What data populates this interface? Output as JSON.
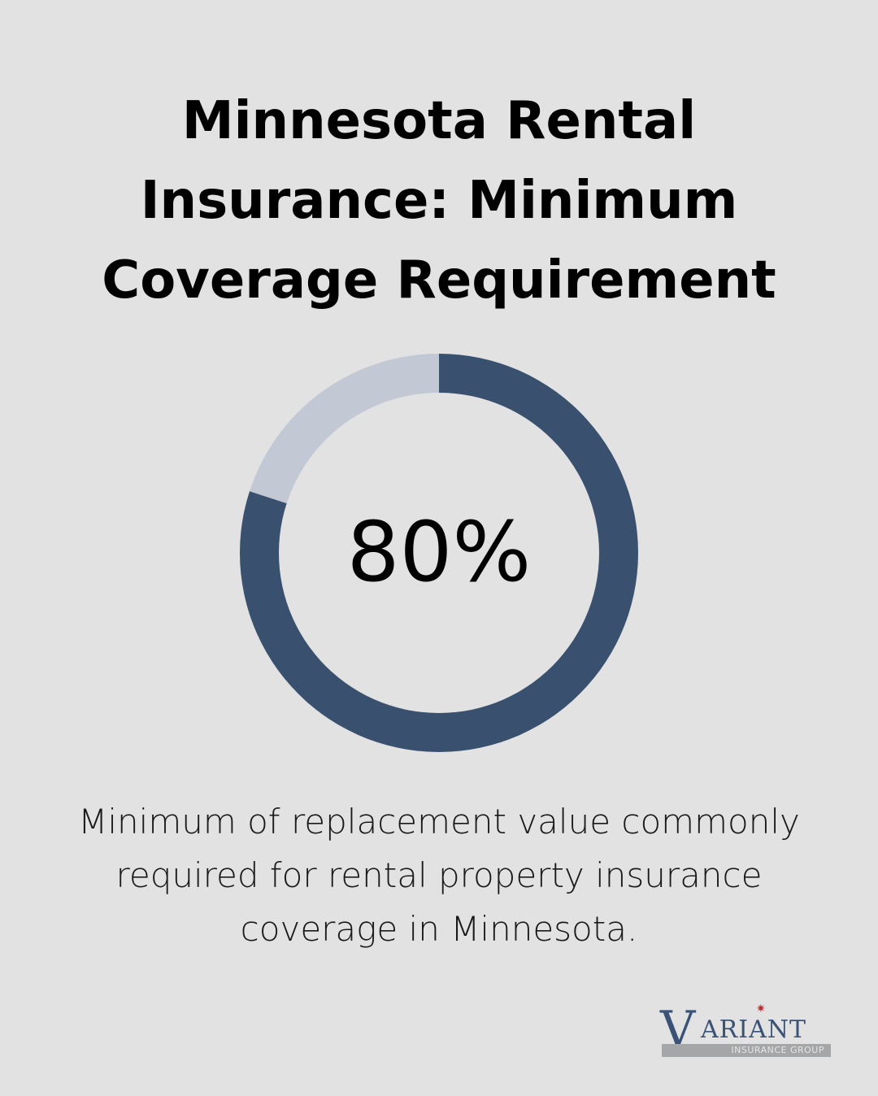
{
  "title_lines": [
    "Minnesota Rental",
    "Insurance: Minimum",
    "Coverage Requirement"
  ],
  "description_lines": [
    "Minimum of replacement value commonly",
    "required for rental property insurance",
    "coverage in Minnesota."
  ],
  "logo": {
    "mark": "V",
    "word": "ARIANT",
    "star": "✷",
    "sub": "INSURANCE GROUP"
  },
  "colors": {
    "background": "#e1e2e1",
    "filled": "#3a506f",
    "remaining": "#c2c9d4"
  },
  "chart_data": {
    "type": "pie",
    "value_label": "80%",
    "values": [
      80,
      20
    ],
    "segments": [
      "filled",
      "remaining"
    ]
  }
}
